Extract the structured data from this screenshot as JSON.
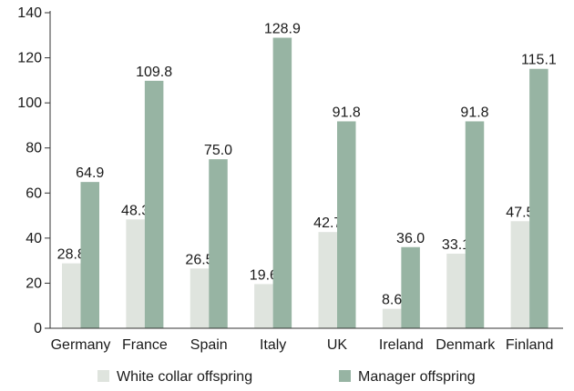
{
  "chart_data": {
    "type": "bar",
    "categories": [
      "Germany",
      "France",
      "Spain",
      "Italy",
      "UK",
      "Ireland",
      "Denmark",
      "Finland"
    ],
    "series": [
      {
        "name": "White collar offspring",
        "values": [
          28.8,
          48.3,
          26.5,
          19.6,
          42.7,
          8.6,
          33.1,
          47.5
        ],
        "labels": [
          "28.8",
          "48.3",
          "26.5",
          "19.6",
          "42.7",
          "8.6",
          "33.1",
          "47.5"
        ],
        "color": "#dfe4de"
      },
      {
        "name": "Manager offspring",
        "values": [
          64.9,
          109.8,
          75.0,
          128.9,
          91.8,
          36.0,
          91.8,
          115.1
        ],
        "labels": [
          "64.9",
          "109.8",
          "75.0",
          "128.9",
          "91.8",
          "36.0",
          "91.8",
          "115.1"
        ],
        "color": "#97b4a3"
      }
    ],
    "yticks": [
      "0",
      "20",
      "40",
      "60",
      "80",
      "100",
      "120",
      "140"
    ],
    "ylim": [
      0,
      140
    ],
    "title": "",
    "xlabel": "",
    "ylabel": "",
    "grid": false,
    "legend_position": "bottom"
  },
  "colors": {
    "axis": "#333333"
  }
}
